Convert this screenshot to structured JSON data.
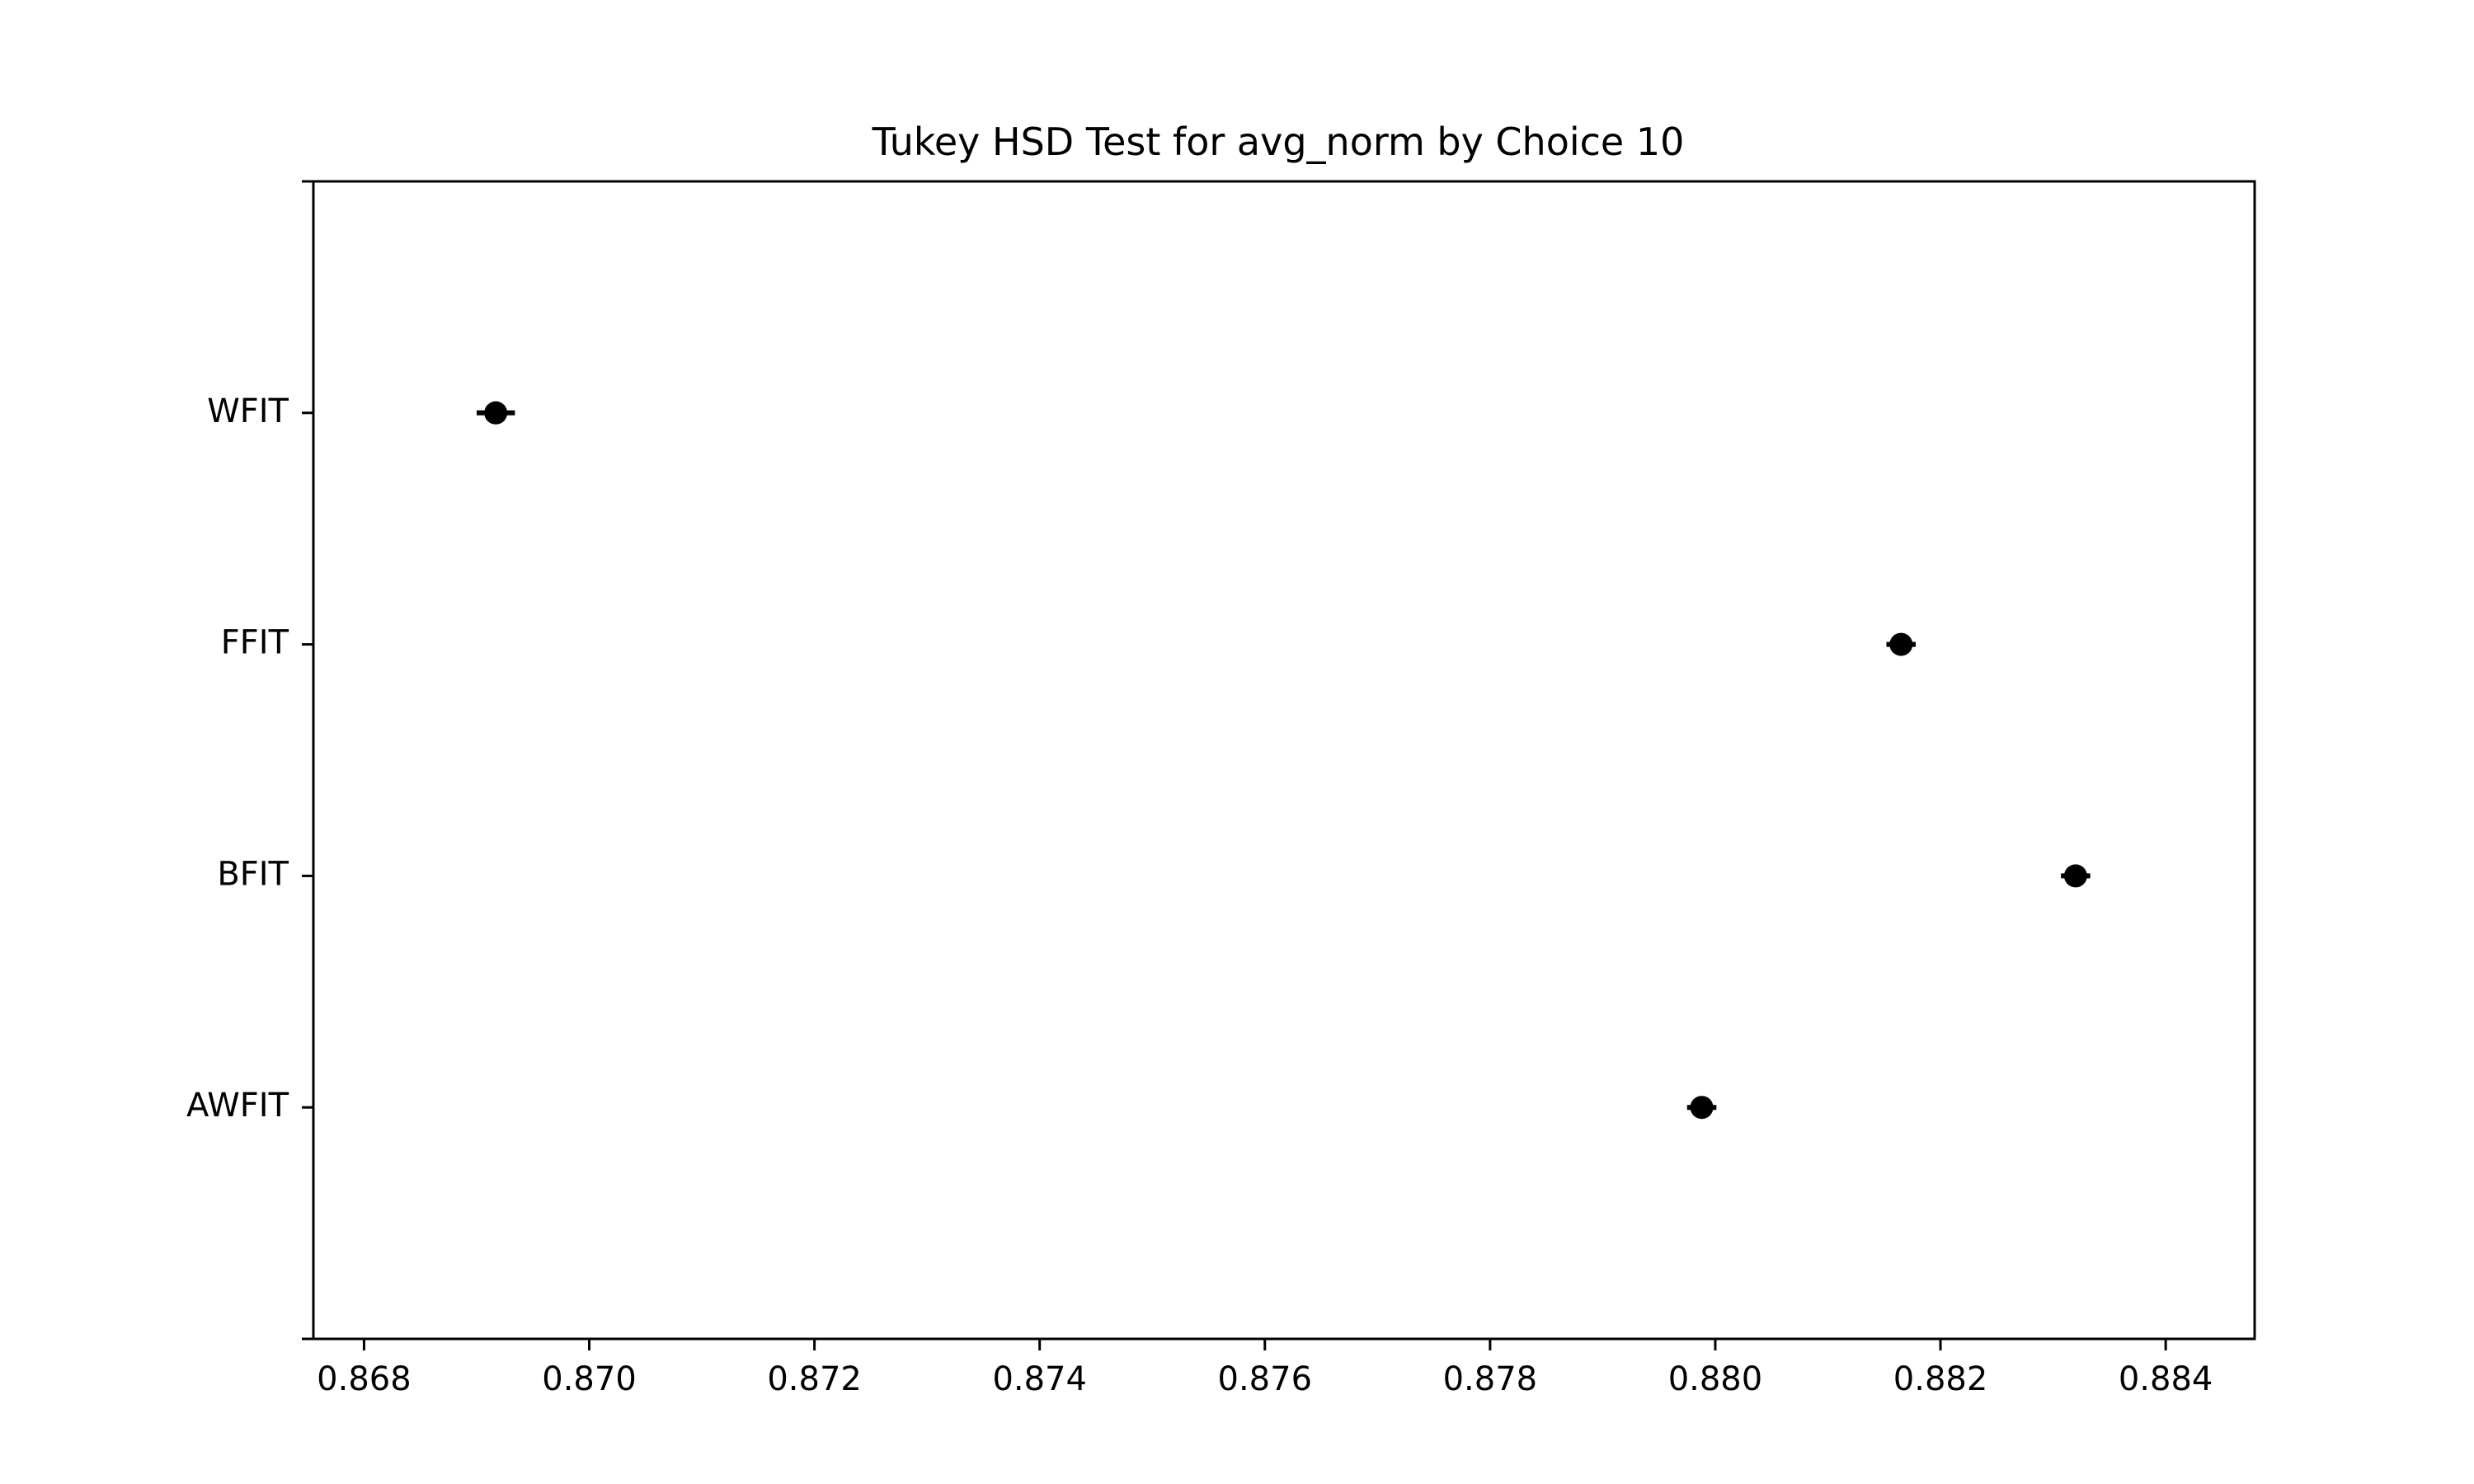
{
  "chart_data": {
    "type": "scatter",
    "title": "Tukey HSD Test for avg_norm by Choice 10",
    "xlabel": "",
    "ylabel": "",
    "xlim": [
      0.86755,
      0.88479
    ],
    "x_ticks": [
      "0.868",
      "0.870",
      "0.872",
      "0.874",
      "0.876",
      "0.878",
      "0.880",
      "0.882",
      "0.884"
    ],
    "x_tick_values": [
      0.868,
      0.87,
      0.872,
      0.874,
      0.876,
      0.878,
      0.88,
      0.882,
      0.884
    ],
    "groups": [
      "WFIT",
      "FFIT",
      "BFIT",
      "AWFIT"
    ],
    "means": [
      0.86917,
      0.88165,
      0.8832,
      0.87988
    ],
    "ci_low": [
      0.869,
      0.88152,
      0.88307,
      0.87975
    ],
    "ci_high": [
      0.86934,
      0.88178,
      0.88333,
      0.88001
    ],
    "grid": false,
    "colors": {
      "marker": "#000000",
      "axes": "#000000",
      "background": "#ffffff"
    }
  }
}
